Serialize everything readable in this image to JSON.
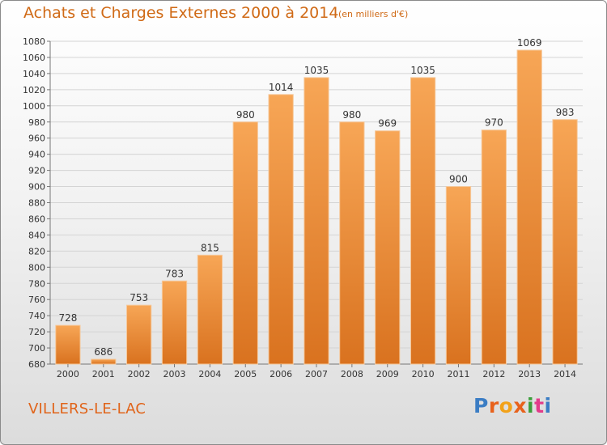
{
  "header": {
    "title": "Achats et Charges Externes 2000 à 2014",
    "unit": "(en milliers d'€)"
  },
  "footer": {
    "city": "VILLERS-LE-LAC",
    "logo_letters": [
      "P",
      "r",
      "o",
      "x",
      "i",
      "t",
      "i"
    ],
    "logo_colors": [
      "#3b7dc4",
      "#e8621c",
      "#f2a21a",
      "#e8621c",
      "#3b9e3a",
      "#e23c8a",
      "#3b7dc4"
    ]
  },
  "colors": {
    "bar_top": "#f7a656",
    "bar_bottom": "#d9721f",
    "accent": "#d06a16"
  },
  "chart_data": {
    "type": "bar",
    "title": "Achats et Charges Externes 2000 à 2014",
    "xlabel": "",
    "ylabel": "",
    "ylim": [
      680,
      1080
    ],
    "ytick_step": 20,
    "grid": true,
    "categories": [
      "2000",
      "2001",
      "2002",
      "2003",
      "2004",
      "2005",
      "2006",
      "2007",
      "2008",
      "2009",
      "2010",
      "2011",
      "2012",
      "2013",
      "2014"
    ],
    "values": [
      728,
      686,
      753,
      783,
      815,
      980,
      1014,
      1035,
      980,
      969,
      1035,
      900,
      970,
      1069,
      983
    ]
  }
}
